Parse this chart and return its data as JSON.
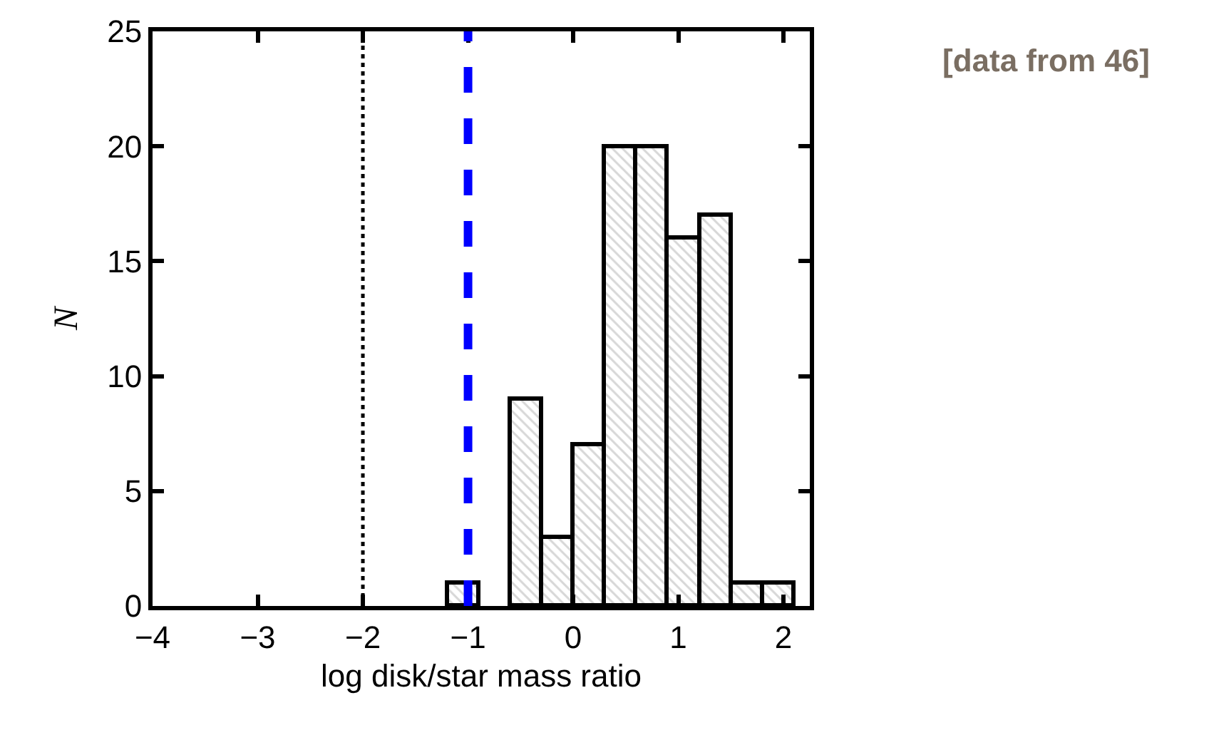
{
  "chart_data": {
    "type": "histogram",
    "xlabel": "log disk/star mass ratio",
    "ylabel": "N",
    "bins": [
      -1.2,
      -0.9,
      -0.6,
      -0.3,
      0.0,
      0.3,
      0.6,
      0.9,
      1.2,
      1.5,
      1.8,
      2.1
    ],
    "values": [
      1,
      0,
      9,
      3,
      7,
      20,
      20,
      16,
      17,
      1,
      1
    ],
    "color": "#000000",
    "xlim": [
      -4,
      2.25
    ],
    "xticks": [
      -4,
      -3,
      -2,
      -1,
      0,
      1,
      2
    ],
    "ylim": [
      0,
      25
    ],
    "yticks": [
      0,
      5,
      10,
      15,
      20,
      25
    ],
    "ref_lines": [
      {
        "axis": "x",
        "value": -2,
        "color": "#000000",
        "line_style": "dotted"
      },
      {
        "axis": "x",
        "value": -1,
        "color": "#0000ff",
        "line_style": "dashed"
      }
    ],
    "annotations": [
      "[data from 46]"
    ]
  }
}
